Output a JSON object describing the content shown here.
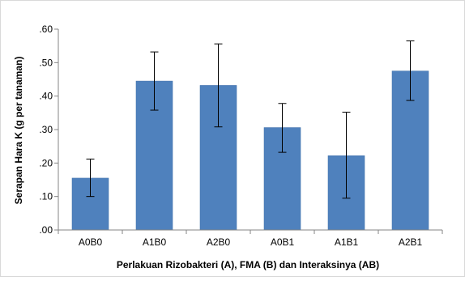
{
  "chart_data": {
    "type": "bar",
    "title": "",
    "xlabel": "Perlakuan Rizobakteri (A), FMA (B) dan Interaksinya (AB)",
    "ylabel": "Serapan Hara K (g per tanaman)",
    "categories": [
      "A0B0",
      "A1B0",
      "A2B0",
      "A0B1",
      "A1B1",
      "A2B1"
    ],
    "values": [
      0.155,
      0.445,
      0.432,
      0.306,
      0.222,
      0.475
    ],
    "error_bars": {
      "lower": [
        0.1,
        0.358,
        0.308,
        0.232,
        0.095,
        0.387
      ],
      "upper": [
        0.212,
        0.532,
        0.556,
        0.378,
        0.352,
        0.565
      ]
    },
    "ylim": [
      0,
      0.6
    ],
    "yticks": [
      0,
      0.1,
      0.2,
      0.3,
      0.4,
      0.5,
      0.6
    ],
    "ytick_labels": [
      ".00",
      ".10",
      ".20",
      ".30",
      ".40",
      ".50",
      ".60"
    ],
    "grid": false,
    "legend": "none",
    "colors": {
      "bar": "#4f81bd",
      "bar_edge": "#3f6fa8",
      "axis": "#868686",
      "error": "#000000",
      "frame": "#d9d9d9"
    }
  }
}
